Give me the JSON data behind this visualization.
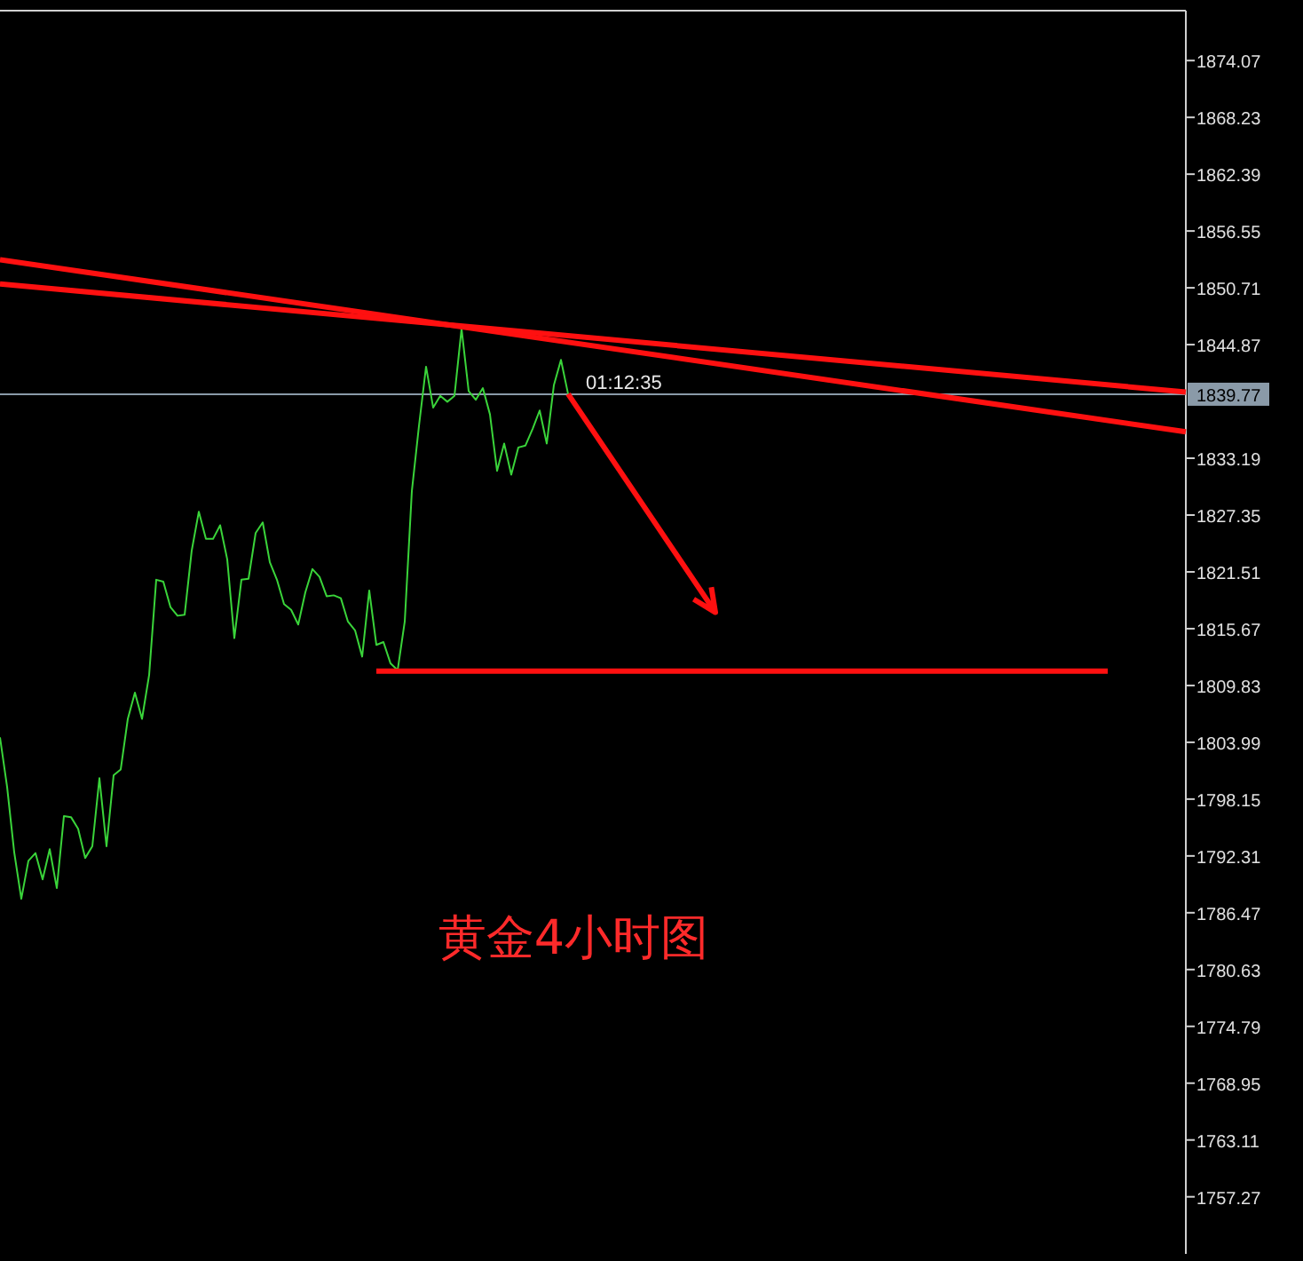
{
  "chart_data": {
    "type": "line",
    "title": "黄金4小时图",
    "categories": [
      null,
      null,
      null,
      null,
      null,
      null,
      null,
      null,
      null,
      null,
      null,
      null,
      null,
      null,
      null,
      null,
      null,
      null,
      null,
      null,
      null,
      null,
      null,
      null,
      null,
      null,
      null,
      null,
      null,
      null,
      null,
      null,
      null,
      null,
      null,
      null,
      null,
      null,
      null,
      null,
      null,
      null,
      null,
      null,
      null,
      null,
      null,
      null,
      null,
      null,
      null,
      null,
      null,
      null,
      null,
      null,
      null,
      null,
      null,
      null,
      null,
      null,
      null,
      null,
      null,
      null,
      null,
      null,
      null,
      null,
      null,
      null,
      null,
      null,
      null,
      null,
      null,
      null,
      null,
      null,
      null,
      null,
      null,
      null,
      null,
      null,
      null,
      null,
      null,
      null,
      null,
      null,
      null,
      null,
      null,
      null,
      null,
      null,
      null,
      null,
      null,
      null,
      null,
      null,
      null,
      null,
      null,
      null,
      null,
      null,
      null,
      null,
      null,
      null,
      null,
      null,
      null,
      null,
      null,
      null,
      null,
      null,
      null,
      null,
      null,
      null,
      null,
      null,
      null,
      null,
      null,
      null,
      null,
      null,
      null,
      null,
      null,
      null,
      null,
      null,
      null,
      null,
      null,
      null,
      null,
      null,
      null,
      null,
      null,
      null,
      null,
      null,
      null,
      null,
      null,
      null,
      null,
      null,
      null,
      null,
      null,
      null,
      null,
      null,
      null,
      null,
      null,
      null
    ],
    "ylim": [
      1751.4,
      1879.2
    ],
    "yticks": [
      1874.07,
      1868.23,
      1862.39,
      1856.55,
      1850.71,
      1844.87,
      1833.19,
      1827.35,
      1821.51,
      1815.67,
      1809.83,
      1803.99,
      1798.15,
      1792.31,
      1786.47,
      1780.63,
      1774.79,
      1768.95,
      1763.11,
      1757.27
    ],
    "line_style": "solid",
    "ref_lines": [
      {
        "axis": "y",
        "value": 1839.77,
        "label": "1839.77",
        "color": "#8a9aa8"
      }
    ],
    "annotations": [
      "01:12:35"
    ],
    "series": [
      {
        "color": "#3ad43a",
        "values": [
          1804.5,
          1799.4,
          1792.7,
          1787.9,
          1791.8,
          1792.6,
          1789.9,
          1793.0,
          1789.0,
          1796.4,
          1796.3,
          1795.1,
          1792.1,
          1793.3,
          1800.3,
          1793.3,
          1800.6,
          1801.2,
          1806.4,
          1809.1,
          1806.4,
          1810.9,
          1820.7,
          1820.5,
          1817.9,
          1817.0,
          1817.1,
          1823.7,
          1827.7,
          1824.9,
          1824.9,
          1826.3,
          1822.8,
          1814.7,
          1820.7,
          1820.8,
          1825.5,
          1826.6,
          1822.5,
          1820.7,
          1818.2,
          1817.6,
          1816.1,
          1819.4,
          1821.8,
          1821.0,
          1819.0,
          1819.1,
          1818.8,
          1816.4,
          1815.5,
          1812.8,
          1819.6,
          1814.0,
          1814.3,
          1812.1,
          1811.4,
          1816.4,
          1829.8,
          1836.5,
          1842.6,
          1838.4,
          1839.6,
          1839.0,
          1839.6,
          1846.5,
          1840.1,
          1839.2,
          1840.4,
          1837.7,
          1831.9,
          1834.7,
          1831.5,
          1834.3,
          1834.5,
          1836.2,
          1838.1,
          1834.7,
          1840.7,
          1843.3,
          1839.8,
          null,
          null,
          null,
          null,
          null,
          null,
          null,
          null,
          null,
          null,
          null,
          null,
          null,
          null,
          null,
          null,
          null,
          null,
          null,
          null,
          null,
          null,
          null,
          null,
          null,
          null,
          null,
          null,
          null,
          null,
          null,
          null,
          null,
          null,
          null,
          null,
          null,
          null,
          null,
          null,
          null,
          null,
          null,
          null,
          null,
          null,
          null,
          null,
          null,
          null,
          null,
          null,
          null,
          null,
          null,
          null,
          null,
          null,
          null,
          null,
          null,
          null,
          null,
          null,
          null,
          null,
          null,
          null,
          null,
          null,
          null,
          null,
          null,
          null,
          null,
          null,
          null,
          null,
          null,
          null,
          null,
          null,
          null,
          null,
          null,
          null,
          null
        ]
      },
      {
        "color": "#ff1010",
        "values": [
          1853.6,
          null,
          null,
          null,
          null,
          null,
          null,
          null,
          null,
          null,
          null,
          null,
          null,
          null,
          null,
          null,
          null,
          null,
          null,
          null,
          null,
          null,
          null,
          null,
          null,
          null,
          null,
          null,
          null,
          null,
          null,
          null,
          null,
          null,
          null,
          null,
          null,
          null,
          null,
          null,
          null,
          null,
          null,
          null,
          null,
          null,
          null,
          null,
          null,
          null,
          null,
          null,
          null,
          null,
          null,
          null,
          null,
          null,
          null,
          null,
          null,
          null,
          null,
          null,
          null,
          null,
          null,
          null,
          null,
          null,
          null,
          null,
          null,
          null,
          null,
          null,
          null,
          null,
          null,
          null,
          null,
          null,
          null,
          null,
          null,
          null,
          null,
          null,
          null,
          null,
          null,
          null,
          null,
          null,
          null,
          null,
          null,
          null,
          null,
          null,
          null,
          null,
          null,
          null,
          null,
          null,
          null,
          null,
          null,
          null,
          null,
          null,
          null,
          null,
          null,
          null,
          null,
          null,
          null,
          null,
          null,
          null,
          null,
          null,
          null,
          null,
          null,
          null,
          null,
          null,
          null,
          null,
          null,
          null,
          null,
          null,
          null,
          null,
          null,
          null,
          null,
          null,
          null,
          null,
          null,
          null,
          null,
          null,
          null,
          null,
          null,
          null,
          null,
          null,
          null,
          null,
          null,
          null,
          null,
          null,
          null,
          null,
          null,
          null,
          null,
          null,
          null,
          1835.9
        ]
      },
      {
        "color": "#ff1010",
        "values": [
          1851.1,
          null,
          null,
          null,
          null,
          null,
          null,
          null,
          null,
          null,
          null,
          null,
          null,
          null,
          null,
          null,
          null,
          null,
          null,
          null,
          null,
          null,
          null,
          null,
          null,
          null,
          null,
          null,
          null,
          null,
          null,
          null,
          null,
          null,
          null,
          null,
          null,
          null,
          null,
          null,
          null,
          null,
          null,
          null,
          null,
          null,
          null,
          null,
          null,
          null,
          null,
          null,
          null,
          null,
          null,
          null,
          null,
          null,
          null,
          null,
          null,
          null,
          null,
          null,
          null,
          null,
          null,
          null,
          null,
          null,
          null,
          null,
          null,
          null,
          null,
          null,
          null,
          null,
          null,
          null,
          null,
          null,
          null,
          null,
          null,
          null,
          null,
          null,
          null,
          null,
          null,
          null,
          null,
          null,
          null,
          null,
          null,
          null,
          null,
          null,
          null,
          null,
          null,
          null,
          null,
          null,
          null,
          null,
          null,
          null,
          null,
          null,
          null,
          null,
          null,
          null,
          null,
          null,
          null,
          null,
          null,
          null,
          null,
          null,
          null,
          null,
          null,
          null,
          null,
          null,
          null,
          null,
          null,
          null,
          null,
          null,
          null,
          null,
          null,
          null,
          null,
          null,
          null,
          null,
          null,
          null,
          null,
          null,
          null,
          null,
          null,
          null,
          null,
          null,
          null,
          null,
          null,
          null,
          null,
          null,
          null,
          null,
          null,
          null,
          null,
          null,
          null,
          1840.0
        ]
      },
      {
        "color": "#ff1010",
        "values": [
          null,
          null,
          null,
          null,
          null,
          null,
          null,
          null,
          null,
          null,
          null,
          null,
          null,
          null,
          null,
          null,
          null,
          null,
          null,
          null,
          null,
          null,
          null,
          null,
          null,
          null,
          null,
          null,
          null,
          null,
          null,
          null,
          null,
          null,
          null,
          null,
          null,
          null,
          null,
          null,
          null,
          null,
          null,
          null,
          null,
          null,
          null,
          null,
          null,
          null,
          null,
          null,
          null,
          1811.3,
          null,
          null,
          null,
          null,
          null,
          null,
          null,
          null,
          null,
          null,
          null,
          null,
          null,
          null,
          null,
          null,
          null,
          null,
          null,
          null,
          null,
          null,
          null,
          null,
          null,
          null,
          null,
          null,
          null,
          null,
          null,
          null,
          null,
          null,
          null,
          null,
          null,
          null,
          null,
          null,
          null,
          null,
          null,
          null,
          null,
          null,
          null,
          null,
          null,
          null,
          null,
          null,
          null,
          null,
          null,
          null,
          null,
          null,
          null,
          null,
          null,
          null,
          null,
          null,
          null,
          null,
          null,
          null,
          null,
          null,
          null,
          null,
          null,
          null,
          null,
          null,
          null,
          null,
          null,
          null,
          null,
          null,
          null,
          null,
          null,
          null,
          null,
          null,
          null,
          null,
          null,
          null,
          null,
          null,
          null,
          null,
          null,
          null,
          null,
          null,
          null,
          null,
          1811.3,
          null,
          null,
          null,
          null,
          null,
          null,
          null,
          null,
          null,
          null,
          null
        ]
      }
    ]
  }
}
